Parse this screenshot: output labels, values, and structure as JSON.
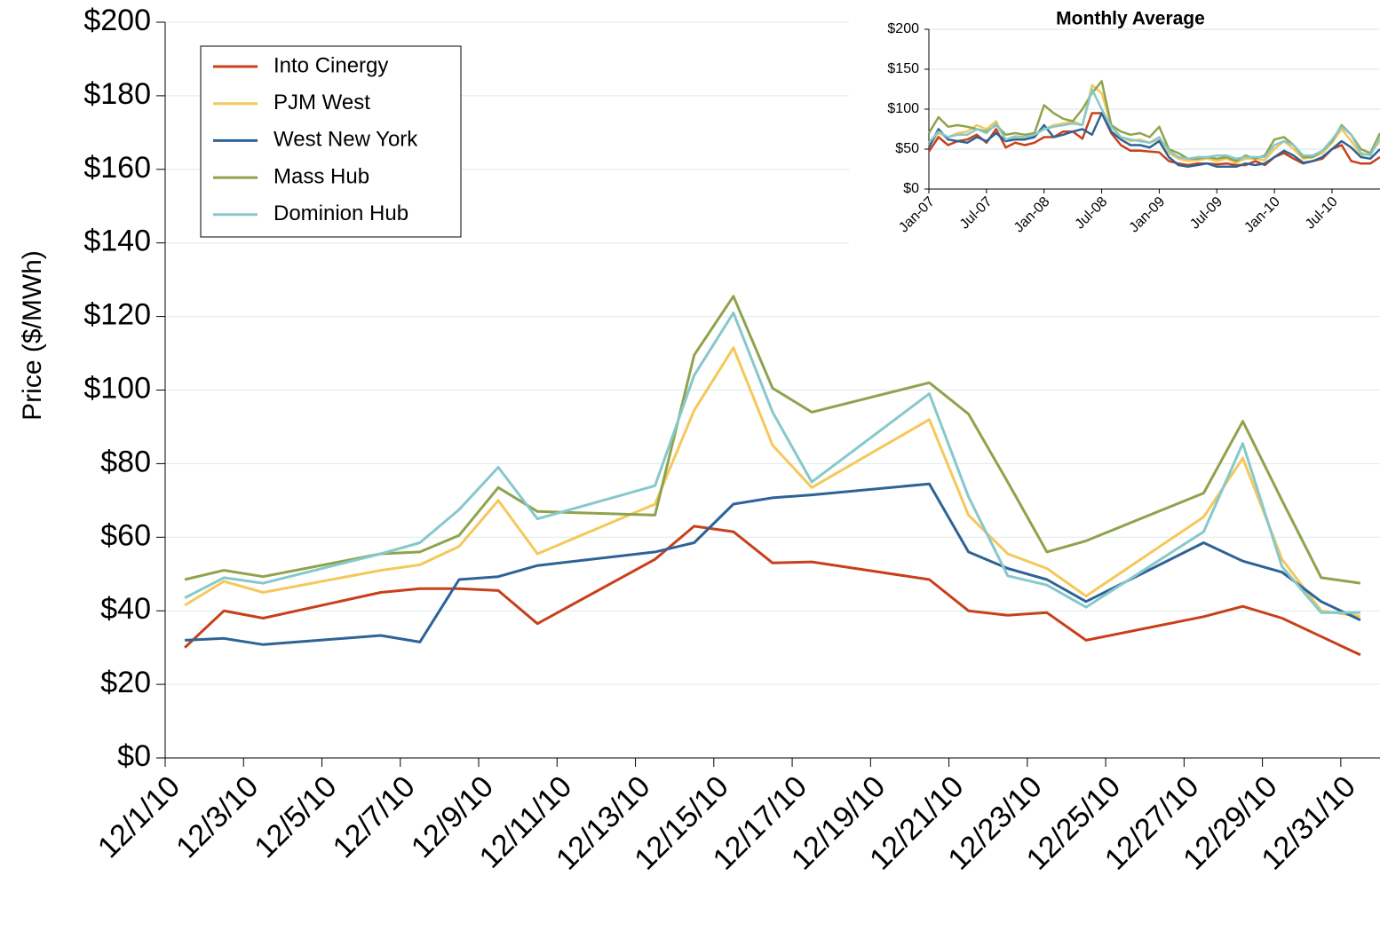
{
  "chart_data": [
    {
      "type": "line",
      "y_label": "Price ($/MWh)",
      "x": [
        "12/1/10",
        "12/2/10",
        "12/3/10",
        "12/6/10",
        "12/7/10",
        "12/8/10",
        "12/9/10",
        "12/10/10",
        "12/13/10",
        "12/14/10",
        "12/15/10",
        "12/16/10",
        "12/17/10",
        "12/20/10",
        "12/21/10",
        "12/22/10",
        "12/23/10",
        "12/24/10",
        "12/27/10",
        "12/28/10",
        "12/29/10",
        "12/30/10",
        "12/31/10"
      ],
      "xlim": [
        "12/1/10",
        "12/31/10"
      ],
      "xticks": [
        "12/1/10",
        "12/3/10",
        "12/5/10",
        "12/7/10",
        "12/9/10",
        "12/11/10",
        "12/13/10",
        "12/15/10",
        "12/17/10",
        "12/19/10",
        "12/21/10",
        "12/23/10",
        "12/25/10",
        "12/27/10",
        "12/29/10",
        "12/31/10"
      ],
      "ylim": [
        0,
        200
      ],
      "yticks": [
        {
          "value": 0,
          "label": "$0"
        },
        {
          "value": 20,
          "label": "$20"
        },
        {
          "value": 40,
          "label": "$40"
        },
        {
          "value": 60,
          "label": "$60"
        },
        {
          "value": 80,
          "label": "$80"
        },
        {
          "value": 100,
          "label": "$100"
        },
        {
          "value": 120,
          "label": "$120"
        },
        {
          "value": 140,
          "label": "$140"
        },
        {
          "value": 160,
          "label": "$160"
        },
        {
          "value": 180,
          "label": "$180"
        },
        {
          "value": 200,
          "label": "$200"
        }
      ],
      "grid": true,
      "legend": "upper left",
      "series": [
        {
          "name": "Into Cinergy",
          "color": "#c8401a",
          "values": [
            30,
            40,
            38,
            45,
            46,
            46,
            45.5,
            36.5,
            54,
            63,
            61.5,
            53,
            53.3,
            48.5,
            40,
            38.8,
            39.5,
            32,
            38.4,
            41.2,
            38,
            33,
            28
          ]
        },
        {
          "name": "PJM West",
          "color": "#f5c85a",
          "values": [
            41.5,
            48,
            45,
            51,
            52.5,
            57.5,
            70,
            55.5,
            69,
            94.5,
            111.5,
            85,
            73.5,
            92,
            66,
            55.5,
            51.5,
            44,
            65.5,
            81.5,
            54,
            40,
            38.5
          ]
        },
        {
          "name": "West New York",
          "color": "#2e6396",
          "values": [
            32,
            32.5,
            30.8,
            33.3,
            31.5,
            48.5,
            49.3,
            52.3,
            56,
            58.5,
            69,
            70.7,
            71.5,
            74.5,
            56,
            51.5,
            48.5,
            42.5,
            58.5,
            53.5,
            50.5,
            42.5,
            37.5
          ]
        },
        {
          "name": "Mass Hub",
          "color": "#8fa34c",
          "values": [
            48.5,
            51,
            49.3,
            55.5,
            56,
            60.5,
            73.5,
            67,
            66,
            109.5,
            125.5,
            100.5,
            94,
            102,
            93.5,
            75,
            56,
            59,
            72,
            91.5,
            70,
            49,
            47.5
          ]
        },
        {
          "name": "Dominion Hub",
          "color": "#86c8cc",
          "values": [
            43.5,
            49,
            47.5,
            55.5,
            58.5,
            67.5,
            79,
            65,
            74,
            104,
            121,
            94,
            75,
            99,
            71,
            49.5,
            47,
            41,
            61.5,
            85.5,
            52,
            39.5,
            39.5
          ]
        }
      ]
    },
    {
      "type": "line",
      "title": "Monthly Average",
      "categories": [
        "Jan-07",
        null,
        null,
        null,
        null,
        null,
        "Jul-07",
        null,
        null,
        null,
        null,
        null,
        "Jan-08",
        null,
        null,
        null,
        null,
        null,
        "Jul-08",
        null,
        null,
        null,
        null,
        null,
        "Jan-09",
        null,
        null,
        null,
        null,
        null,
        "Jul-09",
        null,
        null,
        null,
        null,
        null,
        "Jan-10",
        null,
        null,
        null,
        null,
        null,
        "Jul-10",
        null,
        null,
        null,
        null,
        null
      ],
      "ylim": [
        0,
        200
      ],
      "yticks": [
        {
          "value": 0,
          "label": "$0"
        },
        {
          "value": 50,
          "label": "$50"
        },
        {
          "value": 100,
          "label": "$100"
        },
        {
          "value": 150,
          "label": "$150"
        },
        {
          "value": 200,
          "label": "$200"
        }
      ],
      "grid": true,
      "series": [
        {
          "color": "#c8401a",
          "values": [
            47,
            65,
            55,
            60,
            62,
            68,
            58,
            75,
            52,
            58,
            55,
            58,
            65,
            65,
            72,
            72,
            63,
            95,
            95,
            70,
            55,
            48,
            48,
            47,
            46,
            35,
            32,
            30,
            32,
            32,
            31,
            32,
            30,
            30,
            35,
            30,
            40,
            45,
            38,
            32,
            35,
            38,
            50,
            55,
            35,
            32,
            32,
            40
          ]
        },
        {
          "color": "#f5c85a",
          "values": [
            55,
            70,
            65,
            70,
            72,
            80,
            75,
            85,
            60,
            65,
            62,
            68,
            75,
            80,
            82,
            85,
            80,
            130,
            120,
            80,
            65,
            60,
            62,
            58,
            62,
            45,
            38,
            35,
            36,
            38,
            35,
            38,
            33,
            38,
            38,
            36,
            50,
            60,
            50,
            38,
            40,
            45,
            58,
            75,
            60,
            42,
            45,
            60
          ]
        },
        {
          "color": "#2e6396",
          "values": [
            52,
            75,
            62,
            60,
            58,
            65,
            60,
            70,
            60,
            62,
            62,
            65,
            80,
            65,
            68,
            72,
            75,
            68,
            95,
            72,
            62,
            55,
            55,
            52,
            60,
            40,
            30,
            28,
            30,
            32,
            28,
            28,
            28,
            32,
            30,
            32,
            40,
            48,
            42,
            33,
            35,
            40,
            50,
            60,
            52,
            40,
            38,
            50
          ]
        },
        {
          "color": "#8fa34c",
          "values": [
            70,
            90,
            78,
            80,
            78,
            75,
            72,
            80,
            68,
            70,
            68,
            70,
            105,
            95,
            88,
            85,
            100,
            120,
            135,
            80,
            72,
            68,
            70,
            65,
            78,
            50,
            45,
            38,
            38,
            40,
            38,
            40,
            35,
            42,
            38,
            42,
            62,
            65,
            55,
            40,
            40,
            48,
            60,
            80,
            68,
            50,
            45,
            70
          ]
        },
        {
          "color": "#86c8cc",
          "values": [
            58,
            72,
            65,
            68,
            68,
            75,
            70,
            82,
            62,
            66,
            65,
            68,
            75,
            78,
            80,
            82,
            80,
            125,
            100,
            78,
            65,
            62,
            60,
            58,
            65,
            48,
            40,
            38,
            40,
            40,
            42,
            42,
            38,
            40,
            40,
            40,
            55,
            60,
            55,
            42,
            42,
            48,
            62,
            78,
            68,
            45,
            42,
            65
          ]
        }
      ]
    }
  ]
}
